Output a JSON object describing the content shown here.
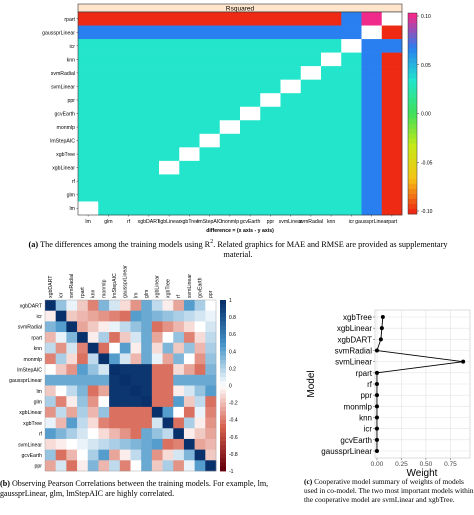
{
  "panel_a": {
    "strip_label": "Rsquared",
    "xlabel": "difference = (x axis - y axis)",
    "rows": [
      "rpart",
      "gaussprLinear",
      "icr",
      "knn",
      "svmRadial",
      "svmLinear",
      "ppr",
      "gcvEarth",
      "monmlp",
      "lmStepAIC",
      "xgbTree",
      "xgbLinear",
      "rf",
      "glm",
      "lm"
    ],
    "cols": [
      "lm",
      "glm",
      "rf",
      "xgbDART",
      "xgbLinear",
      "xgbTree",
      "lmStepAIC",
      "monmlp",
      "gcvEarth",
      "ppr",
      "svmLinear",
      "svmRadial",
      "knn",
      "icr",
      "gaussprLinear",
      "rpart"
    ],
    "colorbar_ticks": [
      "0.10",
      "0.05",
      "0.00",
      "-0.05",
      "-0.10"
    ]
  },
  "panel_b": {
    "labels": [
      "xgbDART",
      "icr",
      "svmRadial",
      "rpart",
      "knn",
      "monmlp",
      "lmStepAIC",
      "gaussprLinear",
      "lm",
      "glm",
      "xgbLinear",
      "xgbTree",
      "rf",
      "svmLinear",
      "gcvEarth",
      "ppr"
    ],
    "colorbar_ticks": [
      "1",
      "0.8",
      "0.6",
      "0.4",
      "0.2",
      "0",
      "-0.2",
      "-0.4",
      "-0.6",
      "-0.8",
      "-1"
    ]
  },
  "chart_data": [
    {
      "type": "heatmap",
      "metric": "Rsquared",
      "xlabel": "difference = (x axis - y axis)",
      "x_categories": [
        "lm",
        "glm",
        "rf",
        "xgbDART",
        "xgbLinear",
        "xgbTree",
        "lmStepAIC",
        "monmlp",
        "gcvEarth",
        "ppr",
        "svmLinear",
        "svmRadial",
        "knn",
        "icr",
        "gaussprLinear",
        "rpart"
      ],
      "y_categories": [
        "rpart",
        "gaussprLinear",
        "icr",
        "knn",
        "svmRadial",
        "svmLinear",
        "ppr",
        "gcvEarth",
        "monmlp",
        "lmStepAIC",
        "xgbTree",
        "xgbLinear",
        "rf",
        "glm",
        "lm"
      ],
      "value_range": [
        -0.1,
        0.1
      ],
      "values": [
        [
          -0.09,
          -0.09,
          -0.09,
          -0.095,
          -0.09,
          -0.09,
          -0.09,
          -0.09,
          -0.095,
          -0.09,
          -0.09,
          -0.09,
          -0.095,
          0.03,
          0.1,
          null
        ],
        [
          0.035,
          0.035,
          0.035,
          0.04,
          0.035,
          0.035,
          0.035,
          0.035,
          0.04,
          0.035,
          0.035,
          0.035,
          0.04,
          0.04,
          null,
          -0.1
        ],
        [
          0.0,
          0.0,
          0.0,
          0.0,
          0.0,
          0.0,
          0.0,
          0.0,
          0.0,
          0.0,
          0.0,
          0.0,
          0.0,
          null,
          -0.04,
          -0.03
        ],
        [
          0.0,
          0.0,
          0.0,
          0.0,
          0.0,
          0.0,
          0.0,
          0.0,
          0.0,
          0.0,
          0.0,
          0.0,
          null,
          0.0,
          -0.04,
          -0.095
        ],
        [
          0.0,
          0.0,
          0.0,
          0.0,
          0.0,
          0.0,
          0.0,
          0.0,
          0.0,
          0.0,
          0.0,
          null,
          0.0,
          0.0,
          -0.035,
          -0.09
        ],
        [
          0.0,
          0.0,
          0.0,
          0.0,
          0.0,
          0.0,
          0.0,
          0.0,
          0.0,
          0.0,
          null,
          0.0,
          0.0,
          0.0,
          -0.035,
          -0.09
        ],
        [
          0.0,
          0.0,
          0.0,
          0.0,
          0.0,
          0.0,
          0.0,
          0.0,
          0.0,
          null,
          0.0,
          0.0,
          0.0,
          0.0,
          -0.035,
          -0.09
        ],
        [
          0.0,
          0.0,
          0.0,
          0.0,
          0.0,
          0.0,
          0.0,
          0.0,
          null,
          0.0,
          0.0,
          0.0,
          0.0,
          0.0,
          -0.04,
          -0.095
        ],
        [
          0.0,
          0.0,
          0.0,
          0.0,
          0.0,
          0.0,
          0.0,
          null,
          0.0,
          0.0,
          0.0,
          0.0,
          0.0,
          0.0,
          -0.035,
          -0.09
        ],
        [
          0.0,
          0.0,
          0.0,
          0.0,
          0.0,
          0.0,
          null,
          0.0,
          0.0,
          0.0,
          0.0,
          0.0,
          0.0,
          0.0,
          -0.035,
          -0.09
        ],
        [
          0.0,
          0.0,
          0.0,
          0.0,
          0.0,
          null,
          0.0,
          0.0,
          0.0,
          0.0,
          0.0,
          0.0,
          0.0,
          0.0,
          -0.035,
          -0.09
        ],
        [
          0.0,
          0.0,
          0.0,
          0.0,
          null,
          0.0,
          0.0,
          0.0,
          0.0,
          0.0,
          0.0,
          0.0,
          0.0,
          0.0,
          -0.035,
          -0.09
        ],
        [
          0.0,
          0.0,
          0.0,
          0.0,
          0.0,
          0.0,
          0.0,
          0.0,
          0.0,
          0.0,
          0.0,
          0.0,
          0.0,
          0.0,
          -0.035,
          -0.09
        ],
        [
          0.0,
          0.0,
          0.0,
          0.0,
          0.0,
          0.0,
          0.0,
          0.0,
          0.0,
          0.0,
          0.0,
          0.0,
          0.0,
          0.0,
          -0.035,
          -0.09
        ],
        [
          null,
          0.0,
          0.0,
          0.0,
          0.0,
          0.0,
          0.0,
          0.0,
          0.0,
          0.0,
          0.0,
          0.0,
          0.0,
          0.0,
          -0.035,
          -0.09
        ]
      ]
    },
    {
      "type": "heatmap",
      "metric": "Pearson correlation",
      "categories": [
        "xgbDART",
        "icr",
        "svmRadial",
        "rpart",
        "knn",
        "monmlp",
        "lmStepAIC",
        "gaussprLinear",
        "lm",
        "glm",
        "xgbLinear",
        "xgbTree",
        "rf",
        "svmLinear",
        "gcvEarth",
        "ppr"
      ],
      "value_range": [
        -1,
        1
      ],
      "high_correlation_block": [
        "lm",
        "glm",
        "lmStepAIC",
        "gaussprLinear"
      ]
    },
    {
      "type": "line",
      "title": "",
      "xlabel": "Weight",
      "ylabel": "Model",
      "categories": [
        "xgbTree",
        "xgbLinear",
        "xgbDART",
        "svmRadial",
        "svmLinear",
        "rpart",
        "rf",
        "ppr",
        "monmlp",
        "knn",
        "icr",
        "gcvEarth",
        "gaussprLinear"
      ],
      "values": [
        0.06,
        0.05,
        0.04,
        0.0,
        0.88,
        0.0,
        0.0,
        0.0,
        0.0,
        0.0,
        0.0,
        0.0,
        0.0
      ],
      "xlim": [
        -0.02,
        0.95
      ],
      "x_ticks": [
        "0.00",
        "0.25",
        "0.50",
        "0.75"
      ],
      "grid": true
    }
  ],
  "captions": {
    "a_label": "(a)",
    "a_text": "The differences among the training models using R",
    "a_sup": "2",
    "a_rest": ". Related graphics for MAE and RMSE are provided as supplementary material.",
    "b_label": "(b)",
    "b_text": "Observing Pearson Correlations between the training models. For example, lm, gaussprLinear, glm, lmStepAIC are highly correlated.",
    "c_label": "(c)",
    "c_text": "Cooperative model summary of weights of models used in co-model. The two most important models within the cooperative model are svmLinear and xgbTree."
  },
  "colors": {
    "cyan": "#22e5cc",
    "blue": "#2a7ff0",
    "red": "#ee2a14",
    "pink": "#f02a8a"
  }
}
